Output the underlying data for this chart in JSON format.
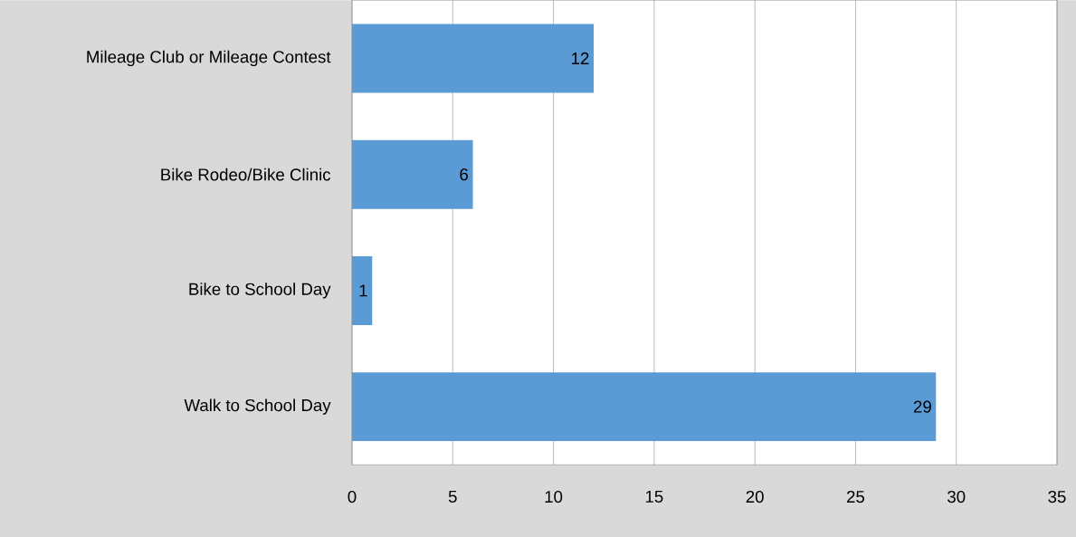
{
  "chart_data": {
    "type": "bar",
    "orientation": "horizontal",
    "categories": [
      "Mileage Club or Mileage Contest",
      "Bike Rodeo/Bike Clinic",
      "Bike to School Day",
      "Walk to School Day"
    ],
    "values": [
      12,
      6,
      1,
      29
    ],
    "color": "#5b9bd5",
    "xlim": [
      0,
      35
    ],
    "xticks": [
      0,
      5,
      10,
      15,
      20,
      25,
      30,
      35
    ],
    "grid": "x",
    "data_labels": true
  }
}
